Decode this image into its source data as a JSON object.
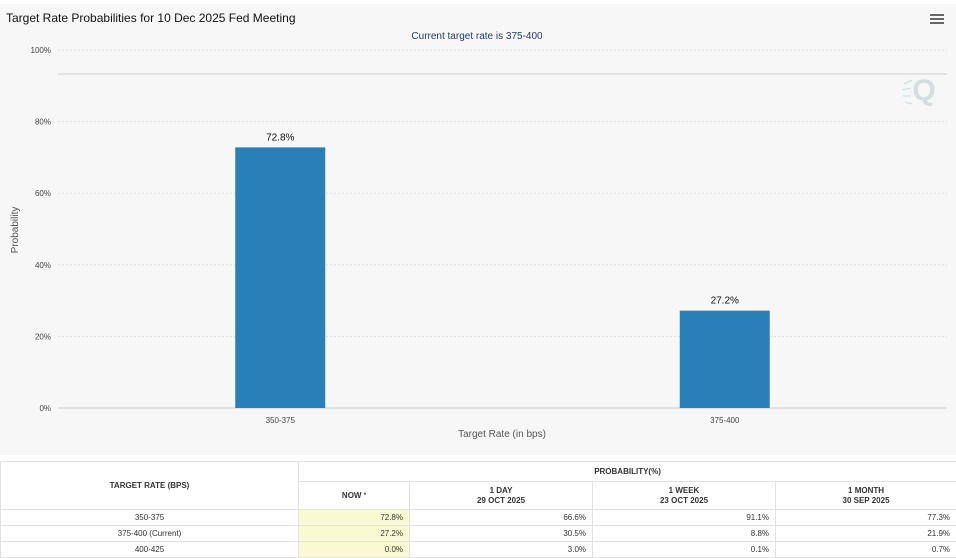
{
  "title": "Target Rate Probabilities for 10 Dec 2025 Fed Meeting",
  "subtitle": "Current target rate is 375-400",
  "watermark": "Q",
  "colors": {
    "bar": "#2980b9",
    "subtitle": "#1f3b6b"
  },
  "chart_data": {
    "type": "bar",
    "title": "Target Rate Probabilities for 10 Dec 2025 Fed Meeting",
    "subtitle": "Current target rate is 375-400",
    "categories": [
      "350-375",
      "375-400"
    ],
    "values": [
      72.8,
      27.2
    ],
    "value_labels": [
      "72.8%",
      "27.2%"
    ],
    "xlabel": "Target Rate (in bps)",
    "ylabel": "Probability",
    "ylim": [
      0,
      100
    ],
    "yticks": [
      "0%",
      "20%",
      "40%",
      "60%",
      "80%",
      "100%"
    ],
    "grid": true
  },
  "table": {
    "rate_header": "TARGET RATE (BPS)",
    "prob_header": "PROBABILITY(%)",
    "now_label": "NOW",
    "now_mark": "*",
    "columns": [
      {
        "label": "1 DAY",
        "date": "29 OCT 2025"
      },
      {
        "label": "1 WEEK",
        "date": "23 OCT 2025"
      },
      {
        "label": "1 MONTH",
        "date": "30 SEP 2025"
      }
    ],
    "rows": [
      {
        "rate": "350-375",
        "now": "72.8%",
        "day": "66.6%",
        "week": "91.1%",
        "month": "77.3%"
      },
      {
        "rate": "375-400 (Current)",
        "now": "27.2%",
        "day": "30.5%",
        "week": "8.8%",
        "month": "21.9%"
      },
      {
        "rate": "400-425",
        "now": "0.0%",
        "day": "3.0%",
        "week": "0.1%",
        "month": "0.7%"
      }
    ]
  }
}
